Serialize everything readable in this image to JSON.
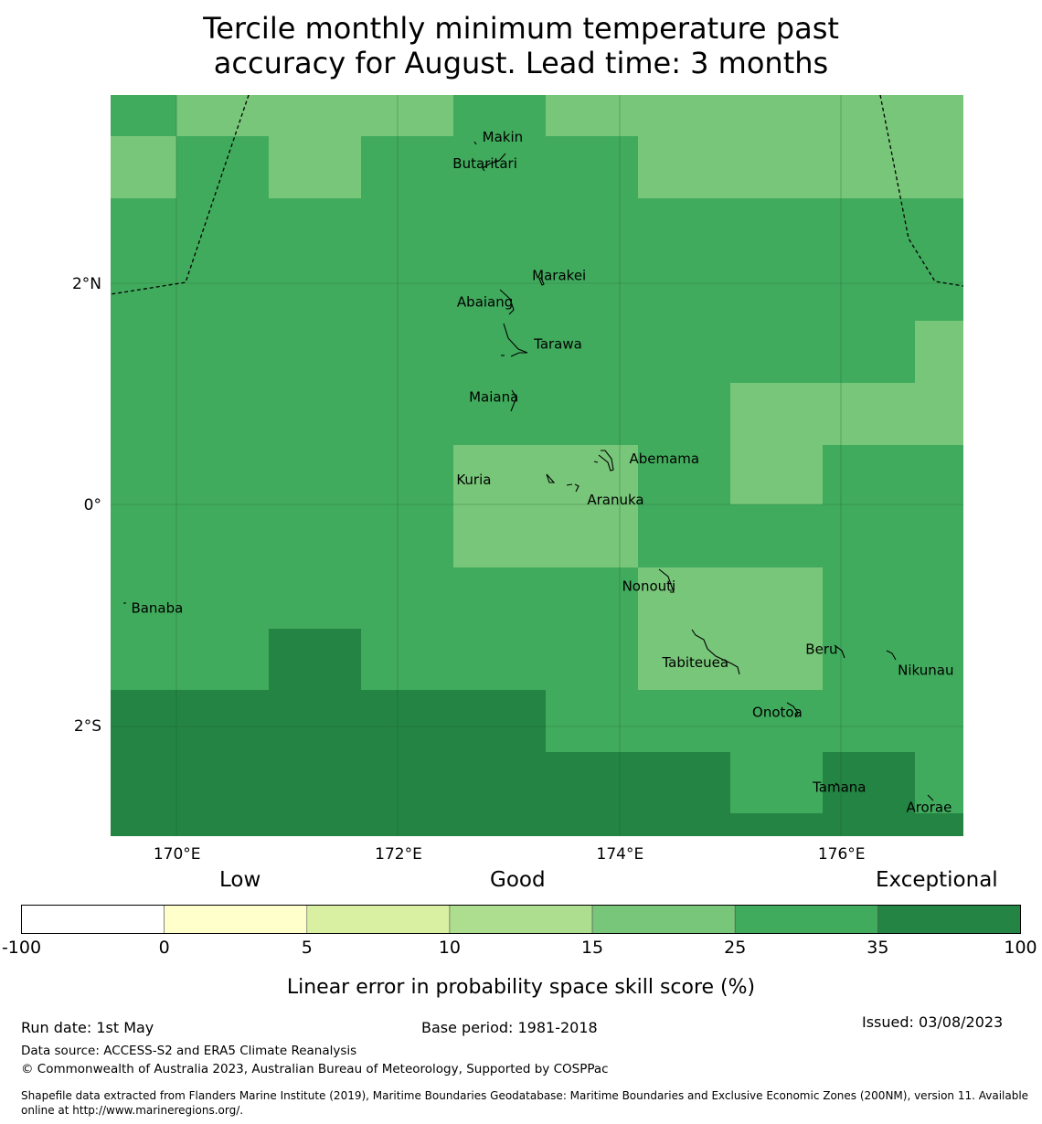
{
  "title_line1": "Tercile monthly minimum temperature past",
  "title_line2": "accuracy for August. Lead time: 3 months",
  "map": {
    "lon_range": [
      169.4,
      177.1
    ],
    "lat_range": [
      -3.0,
      3.7
    ],
    "lon_ticks": [
      {
        "value": 170,
        "label": "170°E"
      },
      {
        "value": 172,
        "label": "172°E"
      },
      {
        "value": 174,
        "label": "174°E"
      },
      {
        "value": 176,
        "label": "176°E"
      }
    ],
    "lat_ticks": [
      {
        "value": 2,
        "label": "2°N"
      },
      {
        "value": 0,
        "label": "0°"
      },
      {
        "value": -2,
        "label": "2°S"
      }
    ],
    "colors": {
      "cat_15_25": "#78c679",
      "cat_25_35": "#41ab5d",
      "cat_35_100": "#238443",
      "grid": "#1a5a2a",
      "coast": "#000000"
    },
    "places": [
      {
        "name": "Makin",
        "lon": 172.94,
        "lat": 3.32
      },
      {
        "name": "Butaritari",
        "lon": 172.78,
        "lat": 3.08
      },
      {
        "name": "Marakei",
        "lon": 173.45,
        "lat": 2.07
      },
      {
        "name": "Abaiang",
        "lon": 172.78,
        "lat": 1.83
      },
      {
        "name": "Tarawa",
        "lon": 173.44,
        "lat": 1.45
      },
      {
        "name": "Maiana",
        "lon": 172.86,
        "lat": 0.97
      },
      {
        "name": "Abemama",
        "lon": 174.4,
        "lat": 0.41
      },
      {
        "name": "Kuria",
        "lon": 172.68,
        "lat": 0.22
      },
      {
        "name": "Aranuka",
        "lon": 173.96,
        "lat": 0.04
      },
      {
        "name": "Nonouti",
        "lon": 174.26,
        "lat": -0.74
      },
      {
        "name": "Banaba",
        "lon": 169.82,
        "lat": -0.94
      },
      {
        "name": "Beru",
        "lon": 175.82,
        "lat": -1.31
      },
      {
        "name": "Tabiteuea",
        "lon": 174.68,
        "lat": -1.43
      },
      {
        "name": "Nikunau",
        "lon": 176.76,
        "lat": -1.5
      },
      {
        "name": "Onotoa",
        "lon": 175.42,
        "lat": -1.88
      },
      {
        "name": "Tamana",
        "lon": 175.98,
        "lat": -2.56
      },
      {
        "name": "Arorae",
        "lon": 176.79,
        "lat": -2.74
      }
    ]
  },
  "legend": {
    "heading_low": "Low",
    "heading_good": "Good",
    "heading_exceptional": "Exceptional",
    "bins": [
      {
        "from": -100,
        "to": 0,
        "color": "#ffffff"
      },
      {
        "from": 0,
        "to": 5,
        "color": "#ffffcc"
      },
      {
        "from": 5,
        "to": 10,
        "color": "#d9f0a3"
      },
      {
        "from": 10,
        "to": 15,
        "color": "#addd8e"
      },
      {
        "from": 15,
        "to": 25,
        "color": "#78c679"
      },
      {
        "from": 25,
        "to": 35,
        "color": "#41ab5d"
      },
      {
        "from": 35,
        "to": 100,
        "color": "#238443"
      }
    ],
    "tick_labels": [
      "-100",
      "0",
      "5",
      "10",
      "15",
      "25",
      "35",
      "100"
    ],
    "label": "Linear error in probability space skill score (%)"
  },
  "footer": {
    "run_date": "Run date: 1st May",
    "base_period": "Base period: 1981-2018",
    "issued": "Issued: 03/08/2023",
    "data_source": "Data source: ACCESS-S2 and ERA5 Climate Reanalysis",
    "copyright": "© Commonwealth of Australia 2023, Australian Bureau of Meteorology, Supported by COSPPac",
    "shapefile": "Shapefile data extracted from Flanders Marine Institute (2019), Maritime Boundaries Geodatabase: Maritime Boundaries and Exclusive Economic Zones (200NM), version 11. Available online at http://www.marineregions.org/."
  }
}
